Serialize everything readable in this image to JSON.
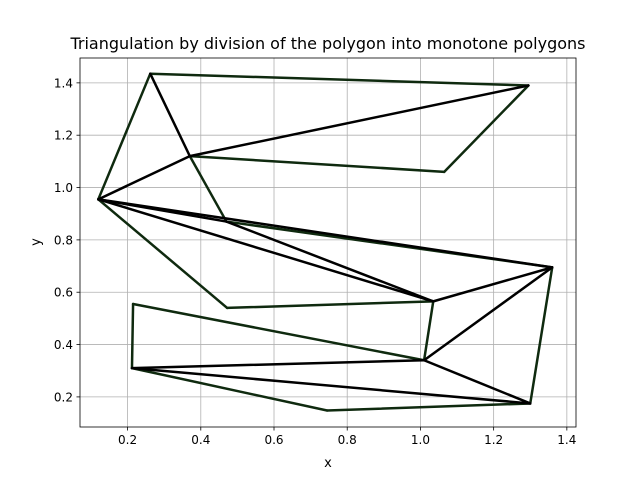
{
  "chart_data": {
    "type": "line",
    "title": "Triangulation by division of the polygon into monotone polygons",
    "xlabel": "x",
    "ylabel": "y",
    "xlim": [
      0.07,
      1.425
    ],
    "ylim": [
      0.085,
      1.495
    ],
    "xticks": [
      0.2,
      0.4,
      0.6,
      0.8,
      1.0,
      1.2,
      1.4
    ],
    "xtick_labels": [
      "0.2",
      "0.4",
      "0.6",
      "0.8",
      "1.0",
      "1.2",
      "1.4"
    ],
    "yticks": [
      0.2,
      0.4,
      0.6,
      0.8,
      1.0,
      1.2,
      1.4
    ],
    "ytick_labels": [
      "0.2",
      "0.4",
      "0.6",
      "0.8",
      "1.0",
      "1.2",
      "1.4"
    ],
    "grid": true,
    "edge_color": "#0f2a0f",
    "diagonal_color": "#000000",
    "polygon": [
      [
        0.12,
        0.955
      ],
      [
        0.262,
        1.435
      ],
      [
        1.295,
        1.39
      ],
      [
        1.065,
        1.06
      ],
      [
        0.37,
        1.12
      ],
      [
        0.47,
        0.87
      ],
      [
        1.36,
        0.695
      ],
      [
        1.3,
        0.175
      ],
      [
        0.745,
        0.148
      ],
      [
        0.212,
        0.31
      ],
      [
        0.215,
        0.555
      ],
      [
        1.01,
        0.34
      ],
      [
        1.035,
        0.565
      ],
      [
        0.472,
        0.54
      ]
    ],
    "diagonals": [
      [
        [
          0.37,
          1.12
        ],
        [
          1.295,
          1.39
        ]
      ],
      [
        [
          0.37,
          1.12
        ],
        [
          0.12,
          0.955
        ]
      ],
      [
        [
          0.37,
          1.12
        ],
        [
          0.262,
          1.435
        ]
      ],
      [
        [
          0.12,
          0.955
        ],
        [
          0.47,
          0.87
        ]
      ],
      [
        [
          0.12,
          0.955
        ],
        [
          1.36,
          0.695
        ]
      ],
      [
        [
          0.12,
          0.955
        ],
        [
          1.035,
          0.565
        ]
      ],
      [
        [
          0.47,
          0.87
        ],
        [
          1.035,
          0.565
        ]
      ],
      [
        [
          1.035,
          0.565
        ],
        [
          1.36,
          0.695
        ]
      ],
      [
        [
          1.01,
          0.34
        ],
        [
          1.36,
          0.695
        ]
      ],
      [
        [
          1.01,
          0.34
        ],
        [
          1.3,
          0.175
        ]
      ],
      [
        [
          1.01,
          0.34
        ],
        [
          0.212,
          0.31
        ]
      ],
      [
        [
          0.212,
          0.31
        ],
        [
          1.3,
          0.175
        ]
      ]
    ]
  }
}
